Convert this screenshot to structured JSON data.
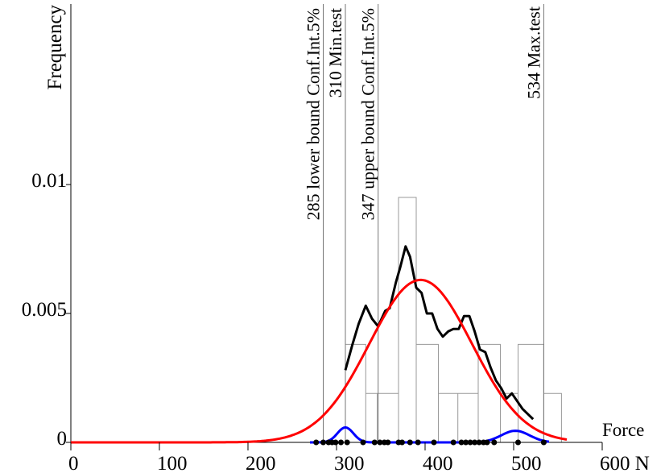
{
  "chart_data": {
    "type": "line",
    "ylabel": "Frequency",
    "xlabel_end": "Force",
    "x_ticks": [
      {
        "value": 0,
        "label": "0"
      },
      {
        "value": 100,
        "label": "100"
      },
      {
        "value": 200,
        "label": "200"
      },
      {
        "value": 300,
        "label": "300"
      },
      {
        "value": 400,
        "label": "400"
      },
      {
        "value": 500,
        "label": "500"
      },
      {
        "value": 600,
        "label": "600 N"
      }
    ],
    "y_ticks": [
      {
        "value": 0,
        "label": "0"
      },
      {
        "value": 0.005,
        "label": "0.005"
      },
      {
        "value": 0.01,
        "label": "0.01"
      }
    ],
    "xlim": [
      0,
      600
    ],
    "ylim": [
      0,
      0.017
    ],
    "vlines": [
      {
        "x": 285,
        "label": "285 lower bound Conf.Int.5%"
      },
      {
        "x": 310,
        "label": "310 Min.test"
      },
      {
        "x": 347,
        "label": "347 upper bound Conf.Int.5%"
      },
      {
        "x": 534,
        "label": "534 Max.test"
      }
    ],
    "histogram": {
      "edges": [
        285,
        310,
        333,
        346,
        370,
        390,
        415,
        437,
        460,
        485,
        505,
        534
      ],
      "values": [
        0,
        0.0038,
        0.0019,
        0.0019,
        0.0095,
        0.0038,
        0.0019,
        0.0019,
        0.0038,
        0.0019,
        0.0038,
        0.0019
      ]
    },
    "series": [
      {
        "color": "#000000",
        "points": [
          [
            310,
            0.0028
          ],
          [
            318,
            0.0038
          ],
          [
            325,
            0.0046
          ],
          [
            333,
            0.0053
          ],
          [
            340,
            0.0048
          ],
          [
            347,
            0.0045
          ],
          [
            355,
            0.0051
          ],
          [
            360,
            0.0052
          ],
          [
            367,
            0.0062
          ],
          [
            372,
            0.0068
          ],
          [
            378,
            0.0076
          ],
          [
            383,
            0.0072
          ],
          [
            390,
            0.006
          ],
          [
            396,
            0.0058
          ],
          [
            402,
            0.005
          ],
          [
            408,
            0.005
          ],
          [
            414,
            0.0044
          ],
          [
            420,
            0.0041
          ],
          [
            426,
            0.0043
          ],
          [
            432,
            0.0044
          ],
          [
            438,
            0.0044
          ],
          [
            444,
            0.0049
          ],
          [
            450,
            0.0049
          ],
          [
            456,
            0.0043
          ],
          [
            462,
            0.0036
          ],
          [
            468,
            0.0035
          ],
          [
            474,
            0.0029
          ],
          [
            480,
            0.0024
          ],
          [
            486,
            0.0021
          ],
          [
            492,
            0.0017
          ],
          [
            498,
            0.0019
          ],
          [
            504,
            0.0016
          ],
          [
            510,
            0.0013
          ],
          [
            516,
            0.0011
          ],
          [
            522,
            0.0009
          ]
        ]
      },
      {
        "color": "#ff0000",
        "distribution": "normal",
        "mean": 395,
        "sd": 58,
        "peak": 0.0063
      },
      {
        "color": "#0000ff",
        "components": [
          {
            "mean": 310,
            "sd": 9,
            "peak": 0.00058
          },
          {
            "mean": 502,
            "sd": 16,
            "peak": 0.00045
          }
        ]
      }
    ],
    "sample_points": [
      277,
      285,
      291,
      295,
      299,
      305,
      312,
      330,
      343,
      349,
      354,
      358,
      370,
      374,
      383,
      392,
      410,
      432,
      441,
      446,
      451,
      456,
      461,
      466,
      470,
      478,
      505,
      534
    ],
    "grid": false,
    "legend": "none"
  }
}
